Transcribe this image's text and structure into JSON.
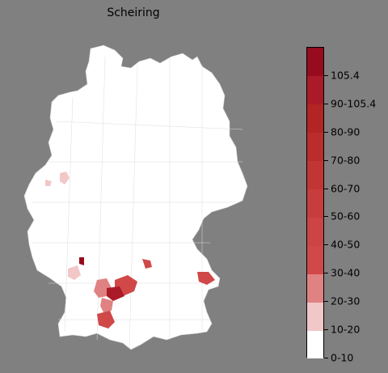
{
  "title": "Scheiring",
  "colorbar": {
    "labels": [
      "0-10",
      "10-20",
      "20-30",
      "30-40",
      "40-50",
      "50-60",
      "60-70",
      "70-80",
      "80-90",
      "90-105.4",
      "105.4"
    ],
    "colors": [
      "#ffffff",
      "#f2c7c7",
      "#e08282",
      "#d04848",
      "#cc4444",
      "#c73d3d",
      "#c23535",
      "#bb2d2d",
      "#b32424",
      "#aa1a28",
      "#960b1e"
    ],
    "max": 105.4
  },
  "regions": [
    {
      "name": "region-south-1",
      "color": "#d04848"
    },
    {
      "name": "region-south-2",
      "color": "#aa1a28"
    },
    {
      "name": "region-south-3",
      "color": "#e08282"
    },
    {
      "name": "region-southwest",
      "color": "#d04848"
    },
    {
      "name": "region-east",
      "color": "#d04848"
    },
    {
      "name": "region-center-south",
      "color": "#d04848"
    },
    {
      "name": "region-west-small",
      "color": "#960b1e"
    },
    {
      "name": "region-west-pale",
      "color": "#f2c7c7"
    },
    {
      "name": "region-nrw-1",
      "color": "#f2c7c7"
    },
    {
      "name": "region-nrw-2",
      "color": "#f2c7c7"
    }
  ]
}
